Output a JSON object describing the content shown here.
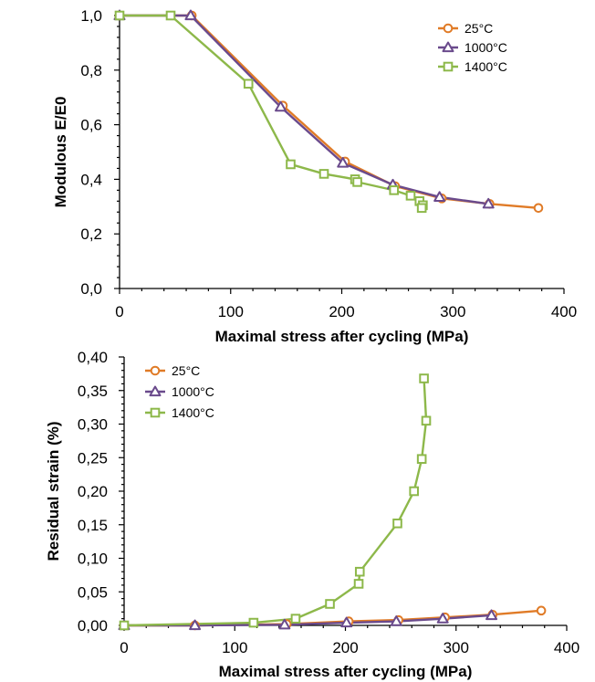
{
  "chart_data": [
    {
      "type": "line",
      "title": "",
      "xlabel": "Maximal stress after cycling (MPa)",
      "ylabel": "Modulous E/E0",
      "xlim": [
        0,
        400
      ],
      "ylim": [
        0,
        1.0
      ],
      "xticks": [
        0,
        100,
        200,
        300,
        400
      ],
      "xtick_labels": [
        "0",
        "100",
        "200",
        "300",
        "400"
      ],
      "yticks": [
        0,
        0.2,
        0.4,
        0.6,
        0.8,
        1.0
      ],
      "ytick_labels": [
        "0,0",
        "0,2",
        "0,4",
        "0,6",
        "0,8",
        "1,0"
      ],
      "grid": false,
      "legend": "top-right",
      "series": [
        {
          "name": "25°C",
          "color": "#E07B27",
          "marker": "circle",
          "x": [
            0,
            65,
            147,
            203,
            248,
            290,
            333,
            377
          ],
          "y": [
            1.0,
            1.0,
            0.67,
            0.465,
            0.375,
            0.33,
            0.31,
            0.295
          ]
        },
        {
          "name": "1000°C",
          "color": "#6A4A8C",
          "marker": "triangle",
          "x": [
            0,
            64,
            145,
            201,
            246,
            288,
            332
          ],
          "y": [
            1.0,
            1.0,
            0.665,
            0.46,
            0.38,
            0.335,
            0.31
          ]
        },
        {
          "name": "1400°C",
          "color": "#8DB84A",
          "marker": "square",
          "x": [
            0,
            46,
            116,
            154,
            184,
            212,
            214,
            247,
            262,
            270,
            273,
            272
          ],
          "y": [
            1.0,
            1.0,
            0.75,
            0.455,
            0.42,
            0.4,
            0.39,
            0.36,
            0.34,
            0.32,
            0.305,
            0.295
          ]
        }
      ]
    },
    {
      "type": "line",
      "title": "",
      "xlabel": "Maximal stress after cycling (MPa)",
      "ylabel": "Residual strain (%)",
      "xlim": [
        0,
        400
      ],
      "ylim": [
        0,
        0.4
      ],
      "xticks": [
        0,
        100,
        200,
        300,
        400
      ],
      "xtick_labels": [
        "0",
        "100",
        "200",
        "300",
        "400"
      ],
      "yticks": [
        0,
        0.05,
        0.1,
        0.15,
        0.2,
        0.25,
        0.3,
        0.35,
        0.4
      ],
      "ytick_labels": [
        "0,00",
        "0,05",
        "0,10",
        "0,15",
        "0,20",
        "0,25",
        "0,30",
        "0,35",
        "0,40"
      ],
      "grid": false,
      "legend": "top-left",
      "series": [
        {
          "name": "25°C",
          "color": "#E07B27",
          "marker": "circle",
          "x": [
            0,
            64,
            147,
            203,
            248,
            290,
            333,
            377
          ],
          "y": [
            0.0,
            0.0,
            0.002,
            0.006,
            0.008,
            0.012,
            0.016,
            0.022
          ]
        },
        {
          "name": "1000°C",
          "color": "#6A4A8C",
          "marker": "triangle",
          "x": [
            0,
            64,
            145,
            201,
            246,
            288,
            332
          ],
          "y": [
            0.0,
            0.0,
            0.001,
            0.004,
            0.006,
            0.01,
            0.015
          ]
        },
        {
          "name": "1400°C",
          "color": "#8DB84A",
          "marker": "square",
          "x": [
            0,
            117,
            155,
            186,
            212,
            213,
            247,
            262,
            269,
            273,
            271
          ],
          "y": [
            0.0,
            0.004,
            0.01,
            0.032,
            0.062,
            0.08,
            0.152,
            0.2,
            0.248,
            0.305,
            0.368
          ]
        }
      ]
    }
  ]
}
